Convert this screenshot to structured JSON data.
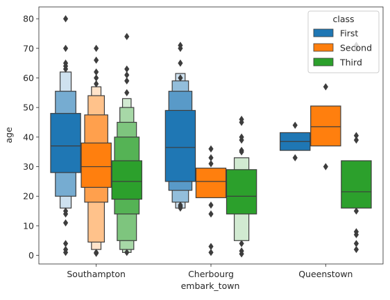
{
  "chart_data": {
    "type": "boxen",
    "xlabel": "embark_town",
    "ylabel": "age",
    "categories": [
      "Southampton",
      "Cherbourg",
      "Queenstown"
    ],
    "ylim": [
      -2.9,
      84
    ],
    "yticks": [
      0,
      10,
      20,
      30,
      40,
      50,
      60,
      70,
      80
    ],
    "legend": {
      "title": "class",
      "placement": "top-right"
    },
    "series": [
      {
        "name": "First",
        "color": "#1f77b4",
        "groups": [
          {
            "levels": [
              [
                28,
                48
              ],
              [
                20,
                55.5
              ],
              [
                16,
                62
              ]
            ],
            "median": 37,
            "outliers": [
              80,
              70,
              65,
              64,
              63,
              15,
              14,
              11,
              4,
              2,
              1
            ]
          },
          {
            "levels": [
              [
                25,
                49
              ],
              [
                22,
                55.5
              ],
              [
                18,
                59
              ],
              [
                16,
                61.5
              ]
            ],
            "median": 36.5,
            "outliers": [
              71,
              70,
              65,
              60,
              17,
              16.5,
              16
            ]
          },
          {
            "levels": [
              [
                35.5,
                41.5
              ]
            ],
            "median": 38.5,
            "outliers": [
              44,
              33
            ]
          }
        ]
      },
      {
        "name": "Second",
        "color": "#ff7f0e",
        "groups": [
          {
            "levels": [
              [
                23,
                38
              ],
              [
                18,
                47.5
              ],
              [
                4.5,
                54
              ],
              [
                2,
                57
              ]
            ],
            "median": 30,
            "outliers": [
              70,
              66,
              62,
              60,
              58,
              1,
              0.7
            ]
          },
          {
            "levels": [
              [
                19.5,
                29.5
              ]
            ],
            "median": 25,
            "outliers": [
              36,
              33,
              31,
              17,
              14,
              3,
              1
            ]
          },
          {
            "levels": [
              [
                37,
                50.5
              ]
            ],
            "median": 43.5,
            "outliers": [
              57,
              30
            ]
          }
        ]
      },
      {
        "name": "Third",
        "color": "#2ca02c",
        "groups": [
          {
            "levels": [
              [
                19,
                32
              ],
              [
                14,
                40
              ],
              [
                5,
                45
              ],
              [
                2,
                50
              ],
              [
                1,
                53
              ]
            ],
            "median": 25,
            "outliers": [
              74,
              63,
              61,
              59,
              55,
              1
            ]
          },
          {
            "levels": [
              [
                14,
                29
              ],
              [
                5,
                33
              ]
            ],
            "median": 20,
            "outliers": [
              46,
              45,
              40,
              39,
              35.5,
              35,
              4,
              1.5,
              0.5
            ]
          },
          {
            "levels": [
              [
                16,
                32
              ]
            ],
            "median": 21.5,
            "outliers": [
              71,
              70,
              40.5,
              39,
              15,
              8,
              7,
              4,
              2
            ]
          }
        ]
      }
    ]
  }
}
